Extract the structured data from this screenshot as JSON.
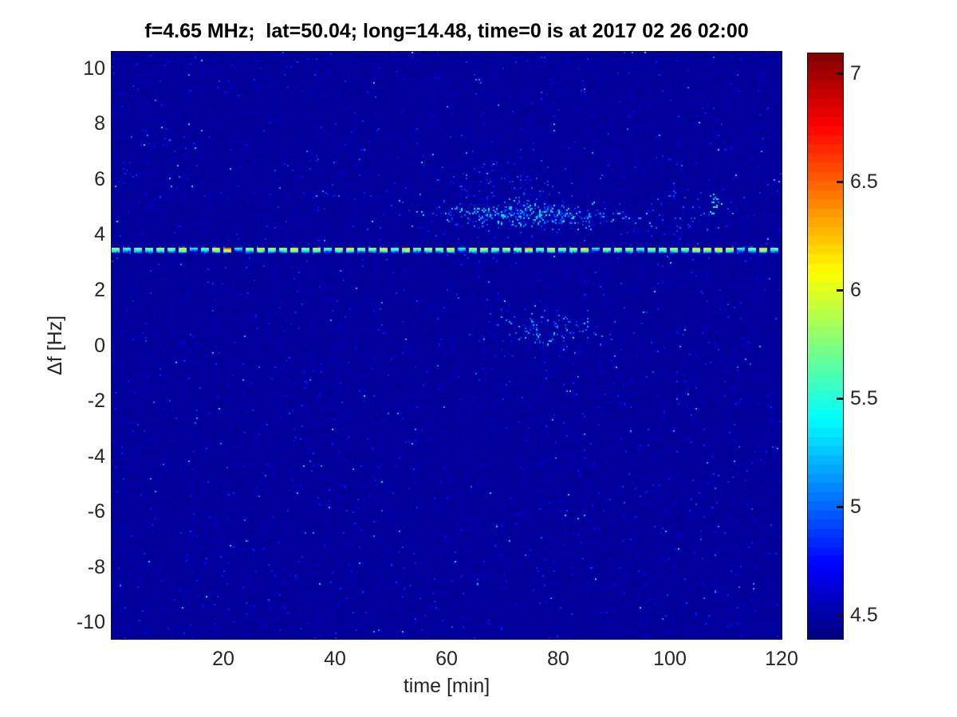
{
  "chart_data": {
    "type": "heatmap",
    "title": "f=4.65 MHz;  lat=50.04; long=14.48, time=0 is at 2017 02 26 02:00",
    "xlabel": "time [min]",
    "ylabel": "Δf [Hz]",
    "x_range": [
      0,
      120
    ],
    "y_range": [
      -10.6,
      10.6
    ],
    "x_ticks": [
      20,
      40,
      60,
      80,
      100,
      120
    ],
    "y_ticks": [
      10,
      8,
      6,
      4,
      2,
      0,
      -2,
      -4,
      -6,
      -8,
      -10
    ],
    "colormap": "jet",
    "color_range": [
      4.39,
      7.09
    ],
    "colorbar_ticks": [
      4.5,
      5,
      5.5,
      6,
      6.5,
      7
    ],
    "colorbar_steps": 64,
    "grid": false,
    "legend": null,
    "background_value": 4.43,
    "noise": {
      "seed": 7,
      "base_jitter": 0.07,
      "mottle_prob": 0.08,
      "mottle_boost": 0.05,
      "speckle_prob": 0.012,
      "speckle_boost": [
        0.1,
        0.42
      ],
      "bright_prob": 0.0015,
      "bright_boost": [
        0.45,
        1.0
      ]
    },
    "features": [
      {
        "kind": "dashed_horizontal_line",
        "f": 3.45,
        "thickness_hz": 0.12,
        "t_start": 0,
        "t_end": 120,
        "dash_on_min": 1.43,
        "dash_off_min": 0.57,
        "glow_prob": 0.22,
        "glow_value": [
          4.6,
          4.95
        ],
        "palette": [
          {
            "v_min": 5.75,
            "v_max": 6.2,
            "weight": 0.68
          },
          {
            "v_min": 5.35,
            "v_max": 5.7,
            "weight": 0.26
          },
          {
            "v_min": 6.25,
            "v_max": 6.5,
            "weight": 0.06
          }
        ]
      },
      {
        "kind": "speckle_cluster",
        "t": 75,
        "f": 4.7,
        "rt": 14,
        "rf": 0.38,
        "prob": 0.45,
        "v": [
          4.7,
          5.45
        ]
      },
      {
        "kind": "speckle_cluster",
        "t": 70,
        "f": 5.4,
        "rt": 13,
        "rf": 1.0,
        "prob": 0.07,
        "v": [
          4.6,
          5.05
        ]
      },
      {
        "kind": "speckle_cluster",
        "t": 78,
        "f": 0.55,
        "rt": 9,
        "rf": 0.55,
        "prob": 0.15,
        "v": [
          4.65,
          5.35
        ]
      },
      {
        "kind": "speckle_cluster",
        "t": 101,
        "f": 4.6,
        "rt": 9,
        "rf": 0.8,
        "prob": 0.07,
        "v": [
          4.6,
          5.1
        ]
      },
      {
        "kind": "speckle_cluster",
        "t": 108,
        "f": 5.1,
        "rt": 0.8,
        "rf": 0.3,
        "prob": 0.5,
        "v": [
          5.2,
          5.7
        ]
      }
    ]
  },
  "colors": {
    "title_text": "#000000",
    "tick_text": "#262626",
    "axis_box": "#151515",
    "figure_background": "#ffffff"
  }
}
